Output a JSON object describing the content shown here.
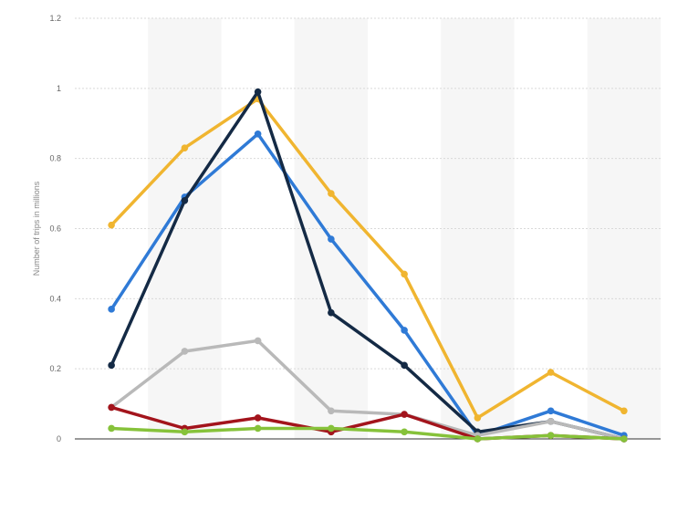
{
  "chart_data": {
    "type": "line",
    "title": "",
    "xlabel": "",
    "ylabel": "Number of trips in millions",
    "ylim": [
      0,
      1.2
    ],
    "yticks": [
      0,
      0.2,
      0.4,
      0.6,
      0.8,
      1,
      1.2
    ],
    "ytick_labels": [
      "0",
      "0.2",
      "0.4",
      "0.6",
      "0.8",
      "1",
      "1.2"
    ],
    "categories": [
      "",
      "",
      "",
      "",
      "",
      "",
      "",
      ""
    ],
    "grid": true,
    "legend": "none",
    "series": [
      {
        "color": "#f0b530",
        "values": [
          0.61,
          0.83,
          0.97,
          0.7,
          0.47,
          0.06,
          0.19,
          0.08
        ]
      },
      {
        "color": "#2f7ad6",
        "values": [
          0.37,
          0.69,
          0.87,
          0.57,
          0.31,
          0.01,
          0.08,
          0.01
        ]
      },
      {
        "color": "#142a45",
        "values": [
          0.21,
          0.68,
          0.99,
          0.36,
          0.21,
          0.02,
          0.05,
          0.0
        ]
      },
      {
        "color": "#b9b9b9",
        "values": [
          0.09,
          0.25,
          0.28,
          0.08,
          0.07,
          0.01,
          0.05,
          0.0
        ]
      },
      {
        "color": "#a3141c",
        "values": [
          0.09,
          0.03,
          0.06,
          0.02,
          0.07,
          0.0,
          0.01,
          0.0
        ]
      },
      {
        "color": "#86c23a",
        "values": [
          0.03,
          0.02,
          0.03,
          0.03,
          0.02,
          0.0,
          0.01,
          0.0
        ]
      }
    ]
  }
}
